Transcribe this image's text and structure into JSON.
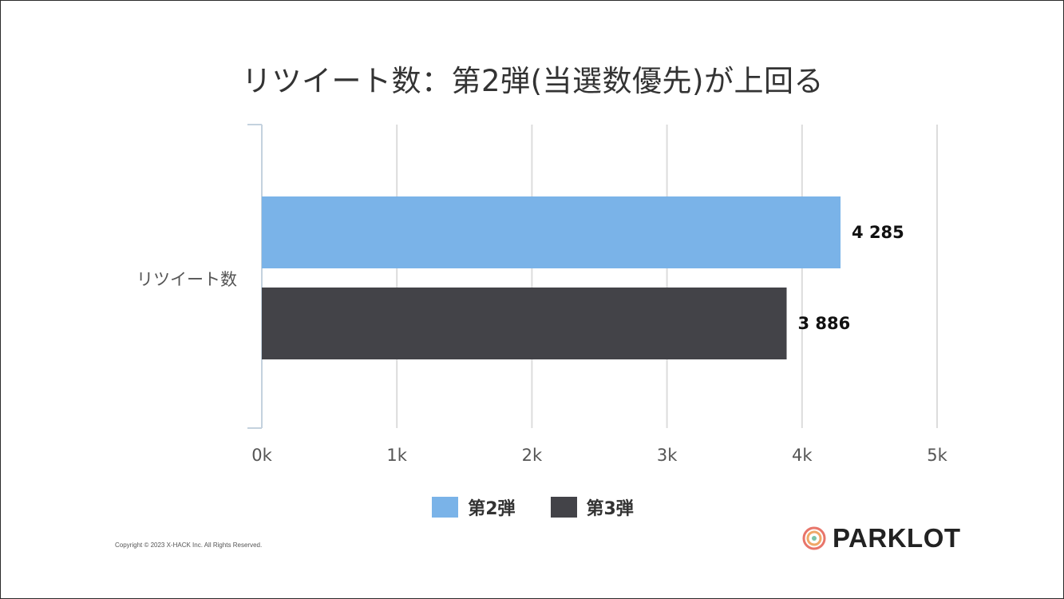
{
  "chart_data": {
    "type": "bar",
    "orientation": "horizontal",
    "title": "リツイート数：第2弾(当選数優先)が上回る",
    "categories": [
      "リツイート数"
    ],
    "series": [
      {
        "name": "第2弾",
        "values": [
          4285
        ],
        "label": "4 285",
        "color": "#7ab3e8"
      },
      {
        "name": "第3弾",
        "values": [
          3886
        ],
        "label": "3 886",
        "color": "#434348"
      }
    ],
    "xlim": [
      0,
      5000
    ],
    "x_ticks": [
      0,
      1000,
      2000,
      3000,
      4000,
      5000
    ],
    "x_tick_labels": [
      "0k",
      "1k",
      "2k",
      "3k",
      "4k",
      "5k"
    ],
    "grid": true,
    "legend": "bottom-center"
  },
  "footer": {
    "copyright": "Copyright © 2023 X-HACK Inc. All Rights Reserved.",
    "logo_text": "PARKLOT"
  },
  "colors": {
    "series_1": "#7ab3e8",
    "series_2": "#434348",
    "gridline": "#dcdcdc",
    "axis": "#c4d2de"
  }
}
